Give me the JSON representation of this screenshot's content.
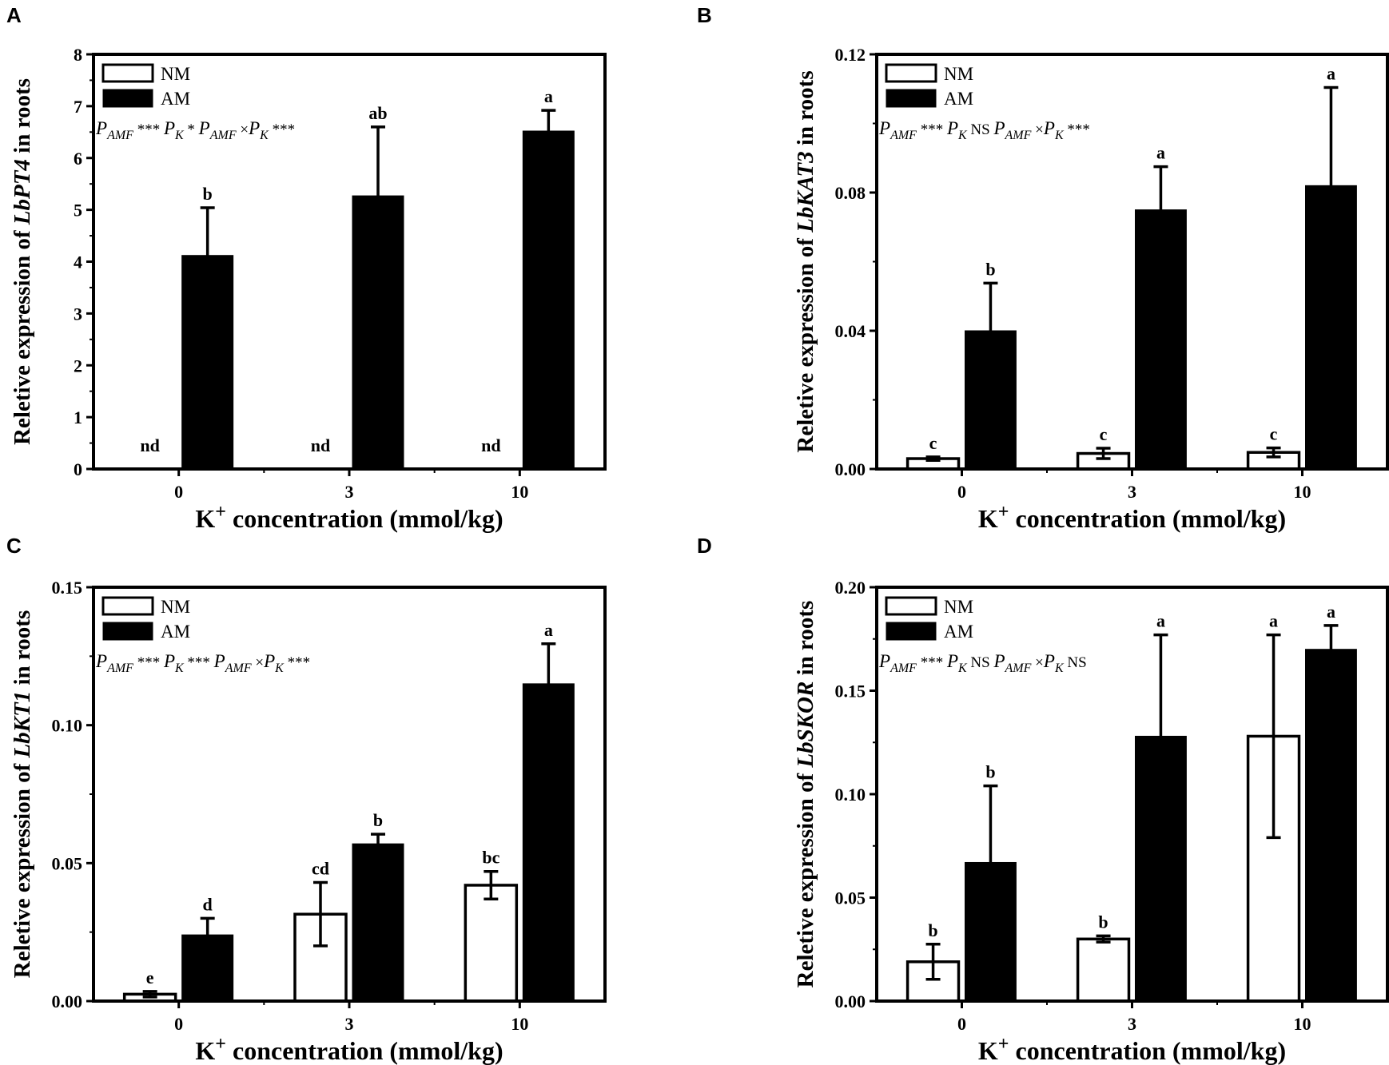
{
  "panels": [
    {
      "letter": "A",
      "gene": "LbPT4",
      "ylabel_prefix": "Reletive expression of ",
      "ylabel_suffix": " in roots",
      "xlabel_main": "K",
      "xlabel_sup": "+",
      "xlabel_rest": " concentration (mmol/kg)",
      "legend": [
        "NM",
        "AM"
      ],
      "stats": [
        {
          "base": "P",
          "sub": "AMF",
          "mark": " *** "
        },
        {
          "base": "P",
          "sub": "K",
          "mark": " * "
        },
        {
          "base": "P",
          "sub": "AMF",
          "mark": " ×"
        },
        {
          "base": "P",
          "sub": "K",
          "mark": " ***"
        }
      ],
      "chart_data": {
        "type": "bar",
        "categories": [
          "0",
          "3",
          "10"
        ],
        "ylim": [
          0,
          8
        ],
        "yticks": [
          "0",
          "1",
          "2",
          "3",
          "4",
          "5",
          "6",
          "7",
          "8"
        ],
        "series": [
          {
            "name": "NM",
            "values": [
              0,
              0,
              0
            ],
            "errors": [
              0,
              0,
              0
            ],
            "labels": [
              "nd",
              "nd",
              "nd"
            ]
          },
          {
            "name": "AM",
            "values": [
              4.12,
              5.27,
              6.52
            ],
            "errors": [
              0.92,
              1.33,
              0.4
            ],
            "labels": [
              "b",
              "ab",
              "a"
            ]
          }
        ]
      }
    },
    {
      "letter": "B",
      "gene": "LbKAT3",
      "ylabel_prefix": "Reletive expression of ",
      "ylabel_suffix": " in roots",
      "xlabel_main": "K",
      "xlabel_sup": "+",
      "xlabel_rest": " concentration (mmol/kg)",
      "legend": [
        "NM",
        "AM"
      ],
      "stats": [
        {
          "base": "P",
          "sub": "AMF",
          "mark": " *** "
        },
        {
          "base": "P",
          "sub": "K",
          "mark": " NS "
        },
        {
          "base": "P",
          "sub": "AMF",
          "mark": " ×"
        },
        {
          "base": "P",
          "sub": "K",
          "mark": " ***"
        }
      ],
      "chart_data": {
        "type": "bar",
        "categories": [
          "0",
          "3",
          "10"
        ],
        "ylim": [
          0,
          0.12
        ],
        "yticks": [
          "0.00",
          "0.04",
          "0.08",
          "0.12"
        ],
        "series": [
          {
            "name": "NM",
            "values": [
              0.003,
              0.0045,
              0.0048
            ],
            "errors": [
              0.0005,
              0.0015,
              0.0013
            ],
            "labels": [
              "c",
              "c",
              "c"
            ]
          },
          {
            "name": "AM",
            "values": [
              0.04,
              0.075,
              0.082
            ],
            "errors": [
              0.0138,
              0.0125,
              0.0284
            ],
            "labels": [
              "b",
              "a",
              "a"
            ]
          }
        ]
      }
    },
    {
      "letter": "C",
      "gene": "LbKT1",
      "ylabel_prefix": "Reletive expression of ",
      "ylabel_suffix": " in roots",
      "xlabel_main": "K",
      "xlabel_sup": "+",
      "xlabel_rest": " concentration (mmol/kg)",
      "legend": [
        "NM",
        "AM"
      ],
      "stats": [
        {
          "base": "P",
          "sub": "AMF",
          "mark": " *** "
        },
        {
          "base": "P",
          "sub": "K",
          "mark": " *** "
        },
        {
          "base": "P",
          "sub": "AMF",
          "mark": " ×"
        },
        {
          "base": "P",
          "sub": "K",
          "mark": " ***"
        }
      ],
      "chart_data": {
        "type": "bar",
        "categories": [
          "0",
          "3",
          "10"
        ],
        "ylim": [
          0,
          0.15
        ],
        "yticks": [
          "0.00",
          "0.05",
          "0.10",
          "0.15"
        ],
        "series": [
          {
            "name": "NM",
            "values": [
              0.0025,
              0.0315,
              0.042
            ],
            "errors": [
              0.001,
              0.0115,
              0.005
            ],
            "labels": [
              "e",
              "cd",
              "bc"
            ]
          },
          {
            "name": "AM",
            "values": [
              0.024,
              0.057,
              0.115
            ],
            "errors": [
              0.006,
              0.0035,
              0.0145
            ],
            "labels": [
              "d",
              "b",
              "a"
            ]
          }
        ]
      }
    },
    {
      "letter": "D",
      "gene": "LbSKOR",
      "ylabel_prefix": "Reletive expression of ",
      "ylabel_suffix": " in roots",
      "xlabel_main": "K",
      "xlabel_sup": "+",
      "xlabel_rest": " concentration (mmol/kg)",
      "legend": [
        "NM",
        "AM"
      ],
      "stats": [
        {
          "base": "P",
          "sub": "AMF",
          "mark": " *** "
        },
        {
          "base": "P",
          "sub": "K",
          "mark": " NS "
        },
        {
          "base": "P",
          "sub": "AMF",
          "mark": " ×"
        },
        {
          "base": "P",
          "sub": "K",
          "mark": " NS"
        }
      ],
      "chart_data": {
        "type": "bar",
        "categories": [
          "0",
          "3",
          "10"
        ],
        "ylim": [
          0,
          0.2
        ],
        "yticks": [
          "0.00",
          "0.05",
          "0.10",
          "0.15",
          "0.20"
        ],
        "series": [
          {
            "name": "NM",
            "values": [
              0.019,
              0.03,
              0.128
            ],
            "errors": [
              0.0085,
              0.0015,
              0.049
            ],
            "labels": [
              "b",
              "b",
              "a"
            ]
          },
          {
            "name": "AM",
            "values": [
              0.067,
              0.128,
              0.17
            ],
            "errors": [
              0.037,
              0.049,
              0.0115
            ],
            "labels": [
              "b",
              "a",
              "a"
            ]
          }
        ]
      }
    }
  ]
}
